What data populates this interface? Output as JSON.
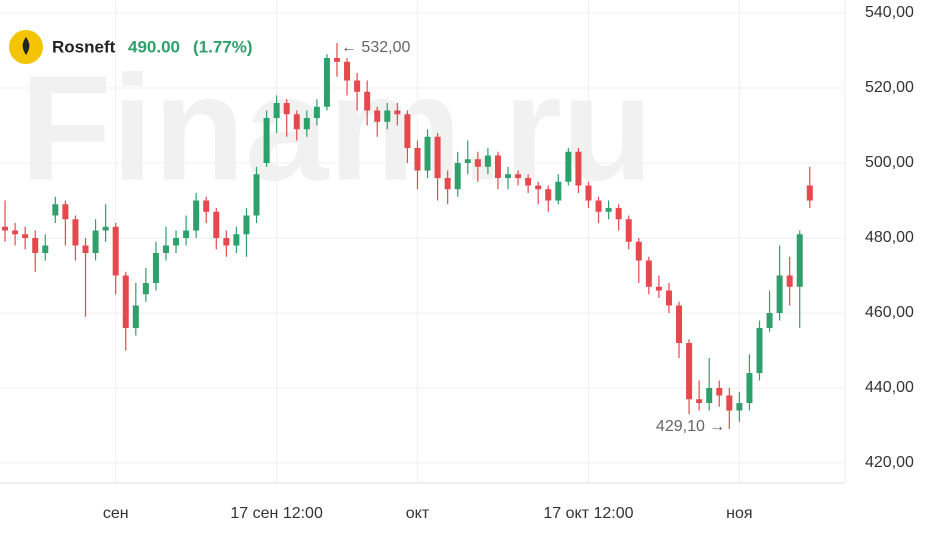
{
  "header": {
    "name": "Rosneft",
    "price": "490.00",
    "change": "(1.77%)"
  },
  "watermark": "Finam.ru",
  "chart_data": {
    "type": "candlestick",
    "up_color": "#2ea06b",
    "down_color": "#e5484d",
    "grid": true,
    "xlim": [
      -0.5,
      83.5
    ],
    "ylim": [
      414.67,
      543.47
    ],
    "xticks": [
      {
        "value": 11,
        "label": "сен"
      },
      {
        "value": 27,
        "label": "17 сен 12:00"
      },
      {
        "value": 41,
        "label": "окт"
      },
      {
        "value": 58,
        "label": "17 окт 12:00"
      },
      {
        "value": 73,
        "label": "ноя"
      }
    ],
    "yticks": [
      {
        "value": 420,
        "label": "420,00"
      },
      {
        "value": 440,
        "label": "440,00"
      },
      {
        "value": 460,
        "label": "460,00"
      },
      {
        "value": 480,
        "label": "480,00"
      },
      {
        "value": 500,
        "label": "500,00"
      },
      {
        "value": 520,
        "label": "520,00"
      },
      {
        "value": 540,
        "label": "540,00"
      }
    ],
    "x": [
      0,
      1,
      2,
      3,
      4,
      5,
      6,
      7,
      8,
      9,
      10,
      11,
      12,
      13,
      14,
      15,
      16,
      17,
      18,
      19,
      20,
      21,
      22,
      23,
      24,
      25,
      26,
      27,
      28,
      29,
      30,
      31,
      32,
      33,
      34,
      35,
      36,
      37,
      38,
      39,
      40,
      41,
      42,
      43,
      44,
      45,
      46,
      47,
      48,
      49,
      50,
      51,
      52,
      53,
      54,
      55,
      56,
      57,
      58,
      59,
      60,
      61,
      62,
      63,
      64,
      65,
      66,
      67,
      68,
      69,
      70,
      71,
      72,
      73,
      74,
      75,
      76,
      77,
      78,
      79,
      80
    ],
    "open": [
      483,
      482,
      481,
      480,
      476,
      486,
      489,
      485,
      478,
      476,
      482,
      483,
      470,
      456,
      465,
      468,
      476,
      478,
      480,
      482,
      490,
      487,
      480,
      478,
      481,
      486,
      500,
      512,
      516,
      513,
      509,
      512,
      515,
      528,
      527,
      522,
      519,
      514,
      511,
      514,
      513,
      504,
      498,
      507,
      496,
      493,
      500,
      501,
      499,
      502,
      496,
      497,
      496,
      494,
      493,
      490,
      495,
      503,
      494,
      490,
      487,
      488,
      485,
      479,
      474,
      467,
      466,
      462,
      452,
      437,
      436,
      440,
      438,
      434,
      436,
      444,
      456,
      460,
      470,
      467,
      494
    ],
    "high": [
      490,
      484,
      483,
      482,
      481,
      491,
      490,
      486,
      480,
      485,
      489,
      484,
      471,
      468,
      472,
      479,
      483,
      482,
      486,
      492,
      491,
      488,
      482,
      483,
      488,
      499,
      514,
      518,
      517,
      514,
      514,
      517,
      529,
      532,
      528,
      524,
      522,
      515,
      516,
      516,
      514,
      506,
      509,
      508,
      498,
      503,
      506,
      503,
      504,
      503,
      499,
      498,
      497,
      495,
      494,
      497,
      504,
      504,
      495,
      491,
      490,
      489,
      486,
      480,
      475,
      470,
      468,
      463,
      453,
      442,
      448,
      442,
      440,
      439,
      449,
      458,
      466,
      478,
      475,
      482,
      499
    ],
    "low": [
      479,
      478,
      477,
      471,
      474,
      484,
      478,
      474,
      459,
      474,
      479,
      465,
      450,
      454,
      463,
      466,
      474,
      476,
      478,
      480,
      484,
      477,
      475,
      476,
      475,
      484,
      499,
      508,
      507,
      506,
      507,
      510,
      514,
      523,
      518,
      514,
      510,
      507,
      509,
      510,
      500,
      493,
      496,
      490,
      489,
      491,
      497,
      495,
      497,
      493,
      493,
      494,
      492,
      489,
      487,
      489,
      494,
      492,
      488,
      484,
      485,
      482,
      477,
      468,
      465,
      464,
      460,
      448,
      433,
      434,
      434,
      435,
      429.1,
      431,
      434,
      442,
      455,
      458,
      462,
      456,
      488
    ],
    "close": [
      482,
      481,
      480,
      476,
      478,
      489,
      485,
      478,
      476,
      482,
      483,
      470,
      456,
      462,
      468,
      476,
      478,
      480,
      482,
      490,
      487,
      480,
      478,
      481,
      486,
      497,
      512,
      516,
      513,
      509,
      512,
      515,
      528,
      527,
      522,
      519,
      514,
      511,
      514,
      513,
      504,
      498,
      507,
      496,
      493,
      500,
      501,
      499,
      502,
      496,
      497,
      496,
      494,
      493,
      490,
      495,
      503,
      494,
      490,
      487,
      488,
      485,
      479,
      474,
      467,
      466,
      462,
      452,
      437,
      436,
      440,
      438,
      434,
      436,
      444,
      456,
      460,
      470,
      467,
      481,
      490
    ],
    "annotations": [
      {
        "text": "← 532,00",
        "x": 33,
        "y": 532
      },
      {
        "text": "429,10 →",
        "x": 72,
        "y": 429.1
      }
    ]
  }
}
